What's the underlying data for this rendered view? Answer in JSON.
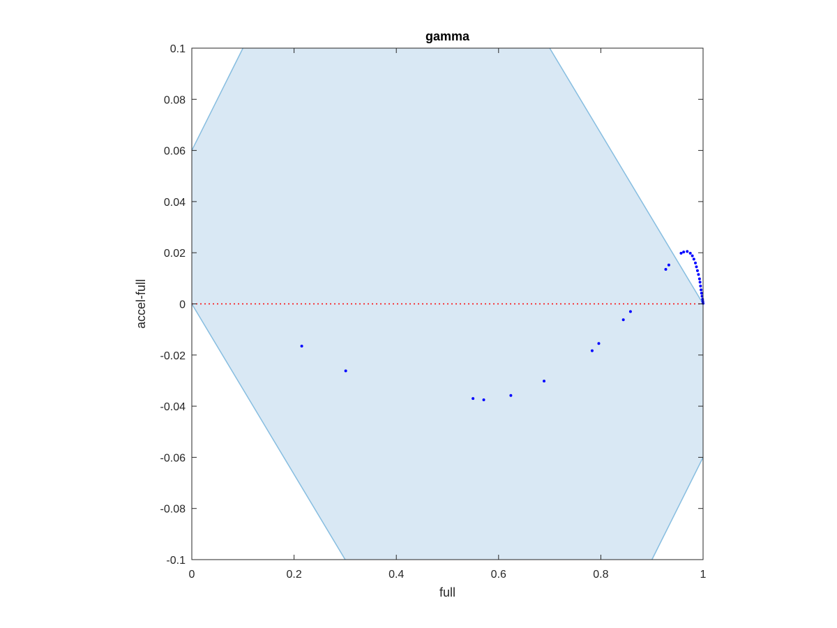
{
  "chart_data": {
    "type": "scatter",
    "title": "gamma",
    "xlabel": "full",
    "ylabel": "accel-full",
    "xlim": [
      0,
      1
    ],
    "ylim": [
      -0.1,
      0.1
    ],
    "xticks": [
      0,
      0.2,
      0.4,
      0.6,
      0.8,
      1
    ],
    "xtick_labels": [
      "0",
      "0.2",
      "0.4",
      "0.6",
      "0.8",
      "1"
    ],
    "yticks": [
      -0.1,
      -0.08,
      -0.06,
      -0.04,
      -0.02,
      0,
      0.02,
      0.04,
      0.06,
      0.08,
      0.1
    ],
    "ytick_labels": [
      "-0.1",
      "-0.08",
      "-0.06",
      "-0.04",
      "-0.02",
      "0",
      "0.02",
      "0.04",
      "0.06",
      "0.08",
      "0.1"
    ],
    "grid": false,
    "reference_line": {
      "y": 0,
      "style": "dotted",
      "color": "#ff0000"
    },
    "region": {
      "description": "shaded feasible band between y = -x and y = 1 - x",
      "fill": "#d9e8f4",
      "stroke": "#86bde0"
    },
    "series": [
      {
        "marker": "dot",
        "color": "#0000ff",
        "x": [
          0.215,
          0.301,
          0.55,
          0.571,
          0.624,
          0.689,
          0.783,
          0.796,
          0.844,
          0.858,
          0.927,
          0.933,
          0.957,
          0.962,
          0.969,
          0.975,
          0.979,
          0.982,
          0.985,
          0.987,
          0.989,
          0.991,
          0.993,
          0.994,
          0.995,
          0.996,
          0.997,
          0.998,
          0.999,
          0.9995,
          1.0
        ],
        "y": [
          -0.0165,
          -0.0262,
          -0.037,
          -0.0375,
          -0.0358,
          -0.0302,
          -0.0183,
          -0.0155,
          -0.0062,
          -0.003,
          0.0135,
          0.0152,
          0.0198,
          0.0203,
          0.0205,
          0.0198,
          0.0188,
          0.0175,
          0.016,
          0.0145,
          0.013,
          0.0115,
          0.0098,
          0.0085,
          0.007,
          0.0055,
          0.0042,
          0.003,
          0.0018,
          0.001,
          0.0002
        ]
      }
    ]
  }
}
